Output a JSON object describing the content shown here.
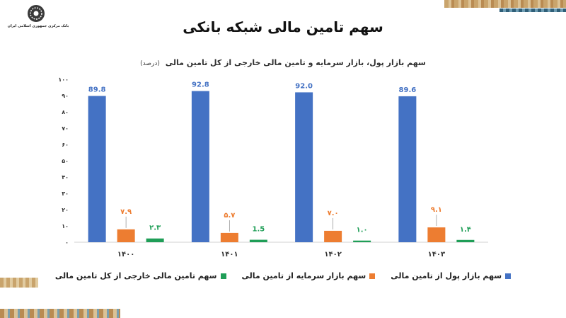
{
  "header": {
    "bank_name": "بانک مرکزی جمهوری اسلامی ایران",
    "title": "سهم تامین مالی شبکه بانکی"
  },
  "chart_data": {
    "type": "bar",
    "title": "سهم بازار پول، بازار سرمایه و تامین مالی خارجی از کل تامین مالی",
    "unit": "(درصد)",
    "categories": [
      "۱۴۰۰",
      "۱۴۰۱",
      "۱۴۰۲",
      "۱۴۰۳"
    ],
    "ylim": [
      0,
      100
    ],
    "yticks": [
      0,
      10,
      20,
      30,
      40,
      50,
      60,
      70,
      80,
      90,
      100
    ],
    "ytick_labels": [
      "۰",
      "۱۰",
      "۲۰",
      "۳۰",
      "۴۰",
      "۵۰",
      "۶۰",
      "۷۰",
      "۸۰",
      "۹۰",
      "۱۰۰"
    ],
    "grid": false,
    "legend_position": "bottom",
    "series": [
      {
        "name": "سهم بازار پول از تامین مالی",
        "color": "#4472c4",
        "values": [
          89.8,
          92.8,
          92.0,
          89.6
        ],
        "labels": [
          "89.8",
          "92.8",
          "92.0",
          "89.6"
        ]
      },
      {
        "name": "سهم بازار سرمایه از تامین مالی",
        "color": "#ed7d31",
        "values": [
          7.9,
          5.7,
          7.0,
          9.1
        ],
        "labels": [
          "۷.۹",
          "۵.۷",
          "۷.۰",
          "۹.۱"
        ]
      },
      {
        "name": "سهم تامین مالی خارجی از کل تامین مالی",
        "color": "#1f9e57",
        "values": [
          2.3,
          1.5,
          1.0,
          1.4
        ],
        "labels": [
          "۲.۳",
          "1.5",
          "۱.۰",
          "۱.۴"
        ]
      }
    ]
  }
}
